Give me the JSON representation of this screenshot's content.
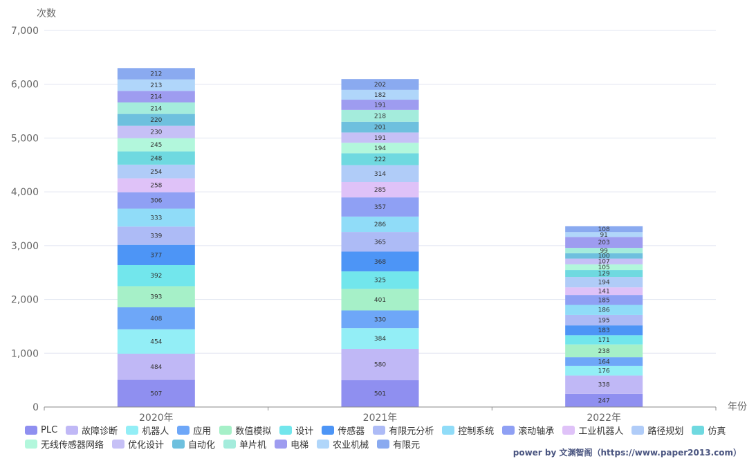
{
  "chart_data": {
    "type": "bar",
    "stacked": true,
    "ylabel": "次数",
    "xlabel": "年份",
    "ylim": [
      0,
      7000
    ],
    "yticks": [
      0,
      1000,
      2000,
      3000,
      4000,
      5000,
      6000,
      7000
    ],
    "ytick_labels": [
      "0",
      "1,000",
      "2,000",
      "3,000",
      "4,000",
      "5,000",
      "6,000",
      "7,000"
    ],
    "categories": [
      "2020年",
      "2021年",
      "2022年"
    ],
    "grid": true,
    "legend_position": "bottom",
    "series": [
      {
        "name": "PLC",
        "color": "#8f8ff0",
        "values": [
          507,
          501,
          247
        ]
      },
      {
        "name": "故障诊断",
        "color": "#c0b8f6",
        "values": [
          484,
          580,
          338
        ]
      },
      {
        "name": "机器人",
        "color": "#93eef6",
        "values": [
          454,
          384,
          176
        ]
      },
      {
        "name": "应用",
        "color": "#6ea7f8",
        "values": [
          408,
          330,
          164
        ]
      },
      {
        "name": "数值模拟",
        "color": "#a6f0c8",
        "values": [
          393,
          401,
          238
        ]
      },
      {
        "name": "设计",
        "color": "#72e6ec",
        "values": [
          392,
          325,
          171
        ]
      },
      {
        "name": "传感器",
        "color": "#4d95f6",
        "values": [
          377,
          368,
          183
        ]
      },
      {
        "name": "有限元分析",
        "color": "#adbbf6",
        "values": [
          339,
          365,
          195
        ]
      },
      {
        "name": "控制系统",
        "color": "#90dcf8",
        "values": [
          333,
          286,
          186
        ]
      },
      {
        "name": "滚动轴承",
        "color": "#8fa0f4",
        "values": [
          306,
          357,
          185
        ]
      },
      {
        "name": "工业机器人",
        "color": "#dfc2f8",
        "values": [
          258,
          285,
          141
        ]
      },
      {
        "name": "路径规划",
        "color": "#b0ccf8",
        "values": [
          254,
          314,
          194
        ]
      },
      {
        "name": "仿真",
        "color": "#6fd9e0",
        "values": [
          248,
          222,
          129
        ]
      },
      {
        "name": "无线传感器网络",
        "color": "#b2f7dc",
        "values": [
          245,
          194,
          105
        ]
      },
      {
        "name": "优化设计",
        "color": "#c6c0f6",
        "values": [
          230,
          191,
          107
        ]
      },
      {
        "name": "自动化",
        "color": "#6ec0de",
        "values": [
          220,
          201,
          100
        ]
      },
      {
        "name": "单片机",
        "color": "#a4ecdc",
        "values": [
          214,
          218,
          99
        ]
      },
      {
        "name": "电梯",
        "color": "#9e9cf0",
        "values": [
          214,
          191,
          203
        ]
      },
      {
        "name": "农业机械",
        "color": "#b0d6fa",
        "values": [
          213,
          182,
          91
        ]
      },
      {
        "name": "有限元",
        "color": "#8aaaf0",
        "values": [
          212,
          202,
          108
        ]
      }
    ]
  },
  "footer": {
    "credit": "power by 文渊智阁（https://www.paper2013.com）"
  }
}
